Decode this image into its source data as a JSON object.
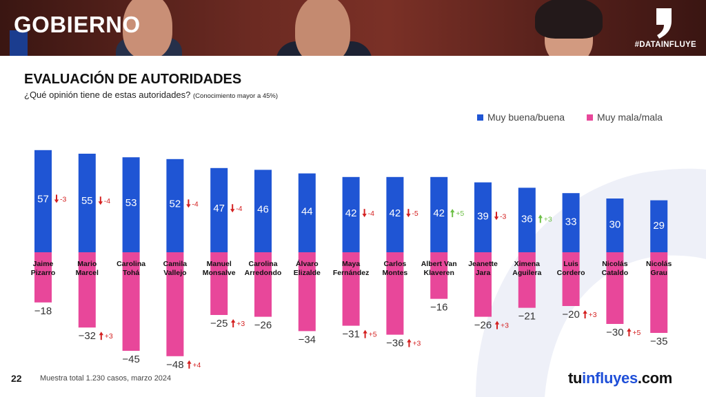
{
  "header": {
    "title": "GOBIERNO",
    "hashtag": "#DATAINFLUYE"
  },
  "heading": {
    "title": "EVALUACIÓN DE AUTORIDADES",
    "question": "¿Qué opinión tiene de estas autoridades?",
    "note": "(Conocimiento mayor a 45%)"
  },
  "legend": {
    "positive": "Muy buena/buena",
    "negative": "Muy mala/mala"
  },
  "colors": {
    "positive": "#1f55d4",
    "negative": "#e8479a",
    "up": "#d42020",
    "up_green": "#6cbf45",
    "down": "#d42020"
  },
  "chart_data": {
    "type": "bar",
    "categories": [
      [
        "Jaime",
        "Pizarro"
      ],
      [
        "Mario",
        "Marcel"
      ],
      [
        "Carolina",
        "Tohá"
      ],
      [
        "Camila",
        "Vallejo"
      ],
      [
        "Manuel",
        "Monsalve"
      ],
      [
        "Carolina",
        "Arredondo"
      ],
      [
        "Álvaro",
        "Elizalde"
      ],
      [
        "Maya",
        "Fernández"
      ],
      [
        "Carlos",
        "Montes"
      ],
      [
        "Albert Van",
        "Klaveren"
      ],
      [
        "Jeanette",
        "Jara"
      ],
      [
        "Ximena",
        "Aguilera"
      ],
      [
        "Luis",
        "Cordero"
      ],
      [
        "Nicolás",
        "Cataldo"
      ],
      [
        "Nicolás",
        "Grau"
      ]
    ],
    "series": [
      {
        "name": "Muy buena/buena",
        "values": [
          57,
          55,
          53,
          52,
          47,
          46,
          44,
          42,
          42,
          42,
          39,
          36,
          33,
          30,
          29
        ],
        "changes": [
          "-3",
          "-4",
          "",
          "-4",
          "-4",
          "",
          "",
          "-4",
          "-5",
          "+5",
          "-3",
          "+3",
          "",
          "",
          ""
        ]
      },
      {
        "name": "Muy mala/mala",
        "values": [
          -18,
          -32,
          -45,
          -48,
          -25,
          -26,
          -34,
          -31,
          -36,
          -16,
          -26,
          -21,
          -20,
          -30,
          -35
        ],
        "changes": [
          "",
          "+3",
          "",
          "+4",
          "+3",
          "",
          "",
          "+5",
          "+3",
          "",
          "+3",
          "",
          "+3",
          "+5",
          ""
        ]
      }
    ],
    "value_labels_positive": [
      "57",
      "55",
      "53",
      "52",
      "47",
      "46",
      "44",
      "42",
      "42",
      "42",
      "39",
      "36",
      "33",
      "30",
      "29"
    ],
    "value_labels_negative": [
      "-18",
      "-32",
      "-45",
      "-48",
      "-25",
      "-26",
      "-34",
      "-31",
      "-36",
      "-16",
      "-26",
      "-21",
      "-20",
      "-30",
      "-35"
    ],
    "grid": false
  },
  "footer": {
    "page": "22",
    "note": "Muestra total 1.230 casos, marzo 2024",
    "brand_pre": "tu",
    "brand_accent": "influyes",
    "brand_post": ".com"
  }
}
